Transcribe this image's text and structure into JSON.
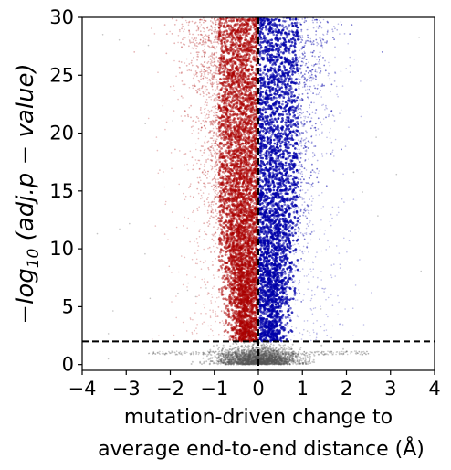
{
  "chart_data": {
    "type": "scatter",
    "title": "",
    "xlabel_line1": "mutation-driven change to",
    "xlabel_line2": "average end-to-end distance (Å)",
    "ylabel_pre": "−log",
    "ylabel_sub": "10",
    "ylabel_post": " (adj.p − value)",
    "xlim": [
      -4,
      4
    ],
    "ylim": [
      -0.5,
      30
    ],
    "xticks": [
      -4,
      -3,
      -2,
      -1,
      0,
      1,
      2,
      3,
      4
    ],
    "xtick_labels": [
      "−4",
      "−3",
      "−2",
      "−1",
      "0",
      "1",
      "2",
      "3",
      "4"
    ],
    "yticks": [
      0,
      5,
      10,
      15,
      20,
      25,
      30
    ],
    "ytick_labels": [
      "0",
      "5",
      "10",
      "15",
      "20",
      "25",
      "30"
    ],
    "grid": false,
    "threshold_lines": {
      "vertical_x": 0,
      "horizontal_y": 2,
      "style": "dashed",
      "color": "#000000"
    },
    "series": [
      {
        "group": "decrease",
        "color": "#aa0000",
        "x_range": [
          -2.2,
          0
        ],
        "y_range": [
          2,
          30
        ],
        "density_center_x": -0.45
      },
      {
        "group": "increase",
        "color": "#0000aa",
        "x_range": [
          0,
          2.2
        ],
        "y_range": [
          2,
          30
        ],
        "density_center_x": 0.45
      },
      {
        "group": "not-significant",
        "color": "#555555",
        "x_range": [
          -2.5,
          2.5
        ],
        "y_range": [
          0,
          2
        ],
        "density_center_x": 0
      }
    ]
  }
}
